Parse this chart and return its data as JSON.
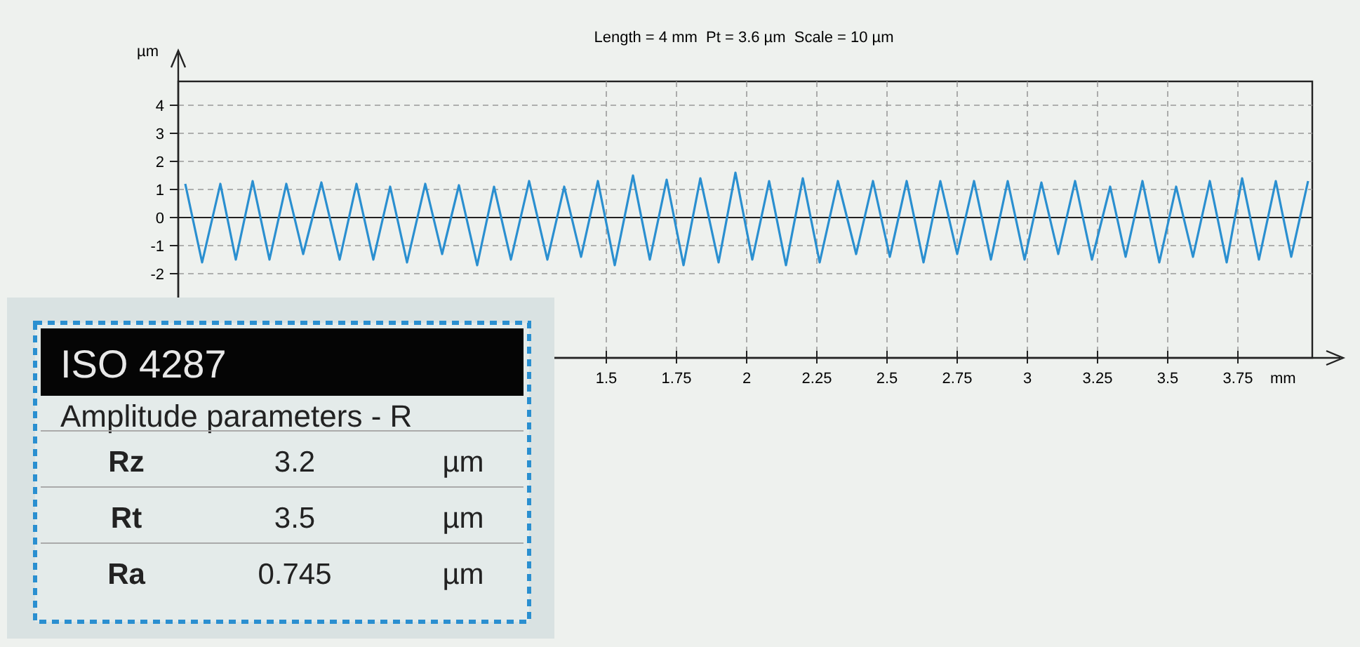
{
  "chart_data": [
    {
      "type": "line",
      "title": "Length = 4 mm  Pt = 3.6 µm  Scale = 10 µm",
      "ylabel": "µm",
      "xlim": [
        -0.025,
        4.015
      ],
      "ylim": [
        -5,
        4.85
      ],
      "xticks": [
        1.5,
        1.75,
        2,
        2.25,
        2.5,
        2.75,
        3,
        3.25,
        3.5,
        3.75
      ],
      "xlabel": "mm",
      "yticks": [
        -2,
        -1,
        0,
        1,
        2,
        3,
        4
      ],
      "grid": true,
      "line_style": "solid",
      "marker": "none",
      "series": [
        {
          "color": "#2a8fd0",
          "x": [
            0,
            0.06,
            0.125,
            0.18,
            0.24,
            0.3,
            0.36,
            0.42,
            0.485,
            0.55,
            0.61,
            0.67,
            0.73,
            0.79,
            0.855,
            0.915,
            0.975,
            1.04,
            1.1,
            1.16,
            1.225,
            1.29,
            1.35,
            1.41,
            1.47,
            1.53,
            1.595,
            1.655,
            1.715,
            1.775,
            1.835,
            1.9,
            1.96,
            2.02,
            2.08,
            2.14,
            2.2,
            2.26,
            2.325,
            2.39,
            2.45,
            2.51,
            2.57,
            2.63,
            2.69,
            2.75,
            2.81,
            2.87,
            2.93,
            2.99,
            3.05,
            3.11,
            3.17,
            3.23,
            3.295,
            3.35,
            3.41,
            3.47,
            3.53,
            3.59,
            3.65,
            3.71,
            3.765,
            3.825,
            3.885,
            3.94,
            4.0
          ],
          "values": [
            1.2,
            -1.6,
            1.2,
            -1.5,
            1.3,
            -1.5,
            1.2,
            -1.3,
            1.25,
            -1.5,
            1.2,
            -1.5,
            1.1,
            -1.6,
            1.2,
            -1.3,
            1.15,
            -1.7,
            1.1,
            -1.5,
            1.3,
            -1.5,
            1.1,
            -1.4,
            1.3,
            -1.7,
            1.5,
            -1.5,
            1.35,
            -1.7,
            1.4,
            -1.6,
            1.6,
            -1.5,
            1.3,
            -1.7,
            1.4,
            -1.6,
            1.3,
            -1.3,
            1.3,
            -1.4,
            1.3,
            -1.6,
            1.3,
            -1.3,
            1.3,
            -1.5,
            1.3,
            -1.5,
            1.25,
            -1.3,
            1.3,
            -1.5,
            1.1,
            -1.4,
            1.3,
            -1.6,
            1.1,
            -1.4,
            1.3,
            -1.6,
            1.4,
            -1.5,
            1.3,
            -1.4,
            1.3
          ]
        }
      ]
    },
    {
      "type": "other",
      "title": "ISO 4287",
      "subtitle": "Amplitude parameters - R",
      "categories": [
        "Rz",
        "Rt",
        "Ra"
      ],
      "values": [
        3.2,
        3.5,
        0.745
      ],
      "data_labels": true,
      "annotations": [
        "µm",
        "µm",
        "µm"
      ]
    }
  ]
}
